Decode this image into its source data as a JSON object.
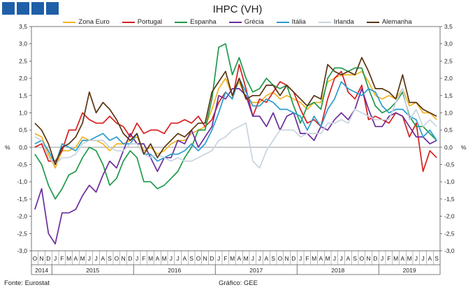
{
  "chart_data": {
    "type": "line",
    "title": "IHPC (VH)",
    "ylabel_left": "%",
    "ylabel_right": "%",
    "ylim": [
      -3.0,
      3.5
    ],
    "yticks": [
      "3,5",
      "3,0",
      "2,5",
      "2,0",
      "1,5",
      "1,0",
      "0,5",
      "0,0",
      "-0,5",
      "-1,0",
      "-1,5",
      "-2,0",
      "-2,5",
      "-3,0"
    ],
    "month_labels": [
      "O",
      "N",
      "D",
      "J",
      "F",
      "M",
      "A",
      "M",
      "J",
      "J",
      "A",
      "S",
      "O",
      "N",
      "D",
      "J",
      "F",
      "M",
      "A",
      "M",
      "J",
      "J",
      "A",
      "S",
      "O",
      "N",
      "D",
      "J",
      "F",
      "M",
      "A",
      "M",
      "J",
      "J",
      "A",
      "S",
      "O",
      "N",
      "D",
      "J",
      "F",
      "M",
      "A",
      "M",
      "J",
      "J",
      "A",
      "S",
      "O",
      "N",
      "D",
      "J",
      "F",
      "M",
      "A",
      "M",
      "J",
      "J",
      "A",
      "S"
    ],
    "years": [
      {
        "label": "2014",
        "start": 0,
        "end": 2
      },
      {
        "label": "2015",
        "start": 3,
        "end": 14
      },
      {
        "label": "2016",
        "start": 15,
        "end": 26
      },
      {
        "label": "2017",
        "start": 27,
        "end": 38
      },
      {
        "label": "2018",
        "start": 39,
        "end": 50
      },
      {
        "label": "2019",
        "start": 51,
        "end": 59
      }
    ],
    "series": [
      {
        "name": "Zona Euro",
        "color": "#f0b323",
        "values": [
          0.4,
          0.3,
          -0.2,
          -0.6,
          -0.1,
          -0.1,
          0.0,
          0.3,
          0.2,
          0.2,
          0.1,
          -0.1,
          0.1,
          0.1,
          0.2,
          0.3,
          -0.1,
          0.0,
          -0.2,
          -0.1,
          0.1,
          0.2,
          0.2,
          0.4,
          0.5,
          0.6,
          1.1,
          1.7,
          2.0,
          1.5,
          1.9,
          1.4,
          1.3,
          1.3,
          1.5,
          1.6,
          1.4,
          1.5,
          1.4,
          1.3,
          1.1,
          1.3,
          1.3,
          1.9,
          2.0,
          2.1,
          2.1,
          2.1,
          2.2,
          1.9,
          1.5,
          1.4,
          1.5,
          1.4,
          1.7,
          1.2,
          1.3,
          1.0,
          1.0,
          0.8
        ]
      },
      {
        "name": "Portugal",
        "color": "#d81e1e",
        "values": [
          0.0,
          0.1,
          -0.4,
          -0.4,
          -0.1,
          0.5,
          0.5,
          1.0,
          0.8,
          0.7,
          0.7,
          0.9,
          0.7,
          0.6,
          0.3,
          0.7,
          0.4,
          0.5,
          0.5,
          0.4,
          0.7,
          0.7,
          0.8,
          0.7,
          0.9,
          0.6,
          0.8,
          1.3,
          1.6,
          1.4,
          2.4,
          1.7,
          0.9,
          1.4,
          1.3,
          1.6,
          1.9,
          1.8,
          1.6,
          1.1,
          0.7,
          0.8,
          0.6,
          1.4,
          2.0,
          2.2,
          1.6,
          1.4,
          1.8,
          0.8,
          0.9,
          0.8,
          0.7,
          1.0,
          0.9,
          0.3,
          0.7,
          -0.7,
          -0.1,
          -0.3
        ]
      },
      {
        "name": "Espanha",
        "color": "#1f9a4a",
        "values": [
          -0.2,
          -0.5,
          -1.1,
          -1.5,
          -1.2,
          -0.8,
          -0.7,
          -0.3,
          0.0,
          -0.1,
          -0.5,
          -1.1,
          -0.9,
          -0.4,
          -0.1,
          -0.3,
          -1.0,
          -1.0,
          -1.2,
          -1.1,
          -0.9,
          -0.7,
          -0.3,
          0.0,
          0.5,
          0.5,
          1.4,
          2.9,
          3.0,
          2.1,
          2.6,
          2.0,
          1.6,
          1.7,
          2.0,
          1.8,
          1.7,
          1.8,
          1.2,
          0.7,
          1.2,
          1.3,
          1.1,
          2.0,
          2.3,
          2.3,
          2.2,
          2.3,
          2.3,
          1.7,
          1.2,
          1.0,
          1.1,
          1.3,
          1.6,
          0.9,
          0.6,
          0.6,
          0.4,
          0.2
        ]
      },
      {
        "name": "Grécia",
        "color": "#6b2d9c",
        "values": [
          -1.8,
          -1.2,
          -2.5,
          -2.8,
          -1.9,
          -1.9,
          -1.8,
          -1.4,
          -1.1,
          -1.3,
          -0.8,
          -0.4,
          -0.6,
          -0.1,
          0.4,
          0.1,
          0.1,
          -0.3,
          -0.7,
          -0.3,
          -0.3,
          0.2,
          0.1,
          0.5,
          0.0,
          0.3,
          0.6,
          1.5,
          1.4,
          1.7,
          1.7,
          1.5,
          0.9,
          0.9,
          0.6,
          1.0,
          0.5,
          0.9,
          1.0,
          0.4,
          0.4,
          0.2,
          0.6,
          0.5,
          0.8,
          1.0,
          0.8,
          1.1,
          1.7,
          1.1,
          0.6,
          0.6,
          0.9,
          1.0,
          0.9,
          0.6,
          0.3,
          0.3,
          0.1,
          0.2
        ]
      },
      {
        "name": "Itália",
        "color": "#2a9bd0",
        "values": [
          0.1,
          0.2,
          -0.1,
          -0.5,
          0.1,
          0.0,
          -0.1,
          0.2,
          0.2,
          0.3,
          0.4,
          0.2,
          0.3,
          0.1,
          0.1,
          0.4,
          -0.2,
          -0.2,
          -0.4,
          -0.3,
          -0.2,
          -0.2,
          -0.1,
          0.1,
          -0.1,
          0.1,
          0.5,
          1.0,
          1.6,
          1.4,
          2.0,
          1.6,
          1.2,
          1.2,
          1.4,
          1.3,
          1.1,
          1.1,
          1.0,
          0.9,
          0.5,
          0.9,
          0.6,
          1.1,
          1.4,
          1.9,
          1.7,
          1.6,
          1.5,
          1.7,
          1.6,
          1.2,
          1.0,
          1.1,
          1.1,
          0.9,
          0.8,
          0.3,
          0.5,
          0.2
        ]
      },
      {
        "name": "Irlanda",
        "color": "#c8d4df",
        "values": [
          0.3,
          0.2,
          -0.3,
          -0.5,
          -0.3,
          -0.3,
          -0.2,
          0.1,
          0.2,
          0.2,
          0.2,
          0.0,
          -0.1,
          -0.1,
          0.1,
          0.1,
          -0.2,
          -0.3,
          -0.2,
          -0.3,
          -0.4,
          -0.3,
          -0.4,
          -0.4,
          -0.3,
          -0.2,
          -0.1,
          0.2,
          0.3,
          0.5,
          0.6,
          0.7,
          -0.4,
          -0.6,
          -0.1,
          0.2,
          0.5,
          0.5,
          0.5,
          0.3,
          0.4,
          0.4,
          0.4,
          0.7,
          0.7,
          0.8,
          0.7,
          1.1,
          1.0,
          0.9,
          0.8,
          0.8,
          0.8,
          1.3,
          1.7,
          0.8,
          1.1,
          0.6,
          0.8,
          0.6
        ]
      },
      {
        "name": "Alemanha",
        "color": "#5a3410",
        "values": [
          0.7,
          0.5,
          0.1,
          -0.5,
          0.0,
          0.1,
          0.3,
          0.7,
          1.6,
          1.0,
          1.3,
          1.1,
          0.8,
          0.4,
          0.2,
          0.4,
          -0.2,
          0.1,
          -0.3,
          0.0,
          0.2,
          0.4,
          0.3,
          0.5,
          0.7,
          0.7,
          1.6,
          1.9,
          2.2,
          1.5,
          2.0,
          1.4,
          1.5,
          1.5,
          1.8,
          1.8,
          1.5,
          1.8,
          1.6,
          1.4,
          1.2,
          1.5,
          1.4,
          2.4,
          2.2,
          2.1,
          2.2,
          2.1,
          2.6,
          2.2,
          1.7,
          1.7,
          1.6,
          1.4,
          2.1,
          1.3,
          1.3,
          1.1,
          1.0,
          0.9
        ]
      }
    ]
  },
  "footer": {
    "source": "Fonte: Eurostat",
    "graphic": "Gráfico: GEE"
  }
}
